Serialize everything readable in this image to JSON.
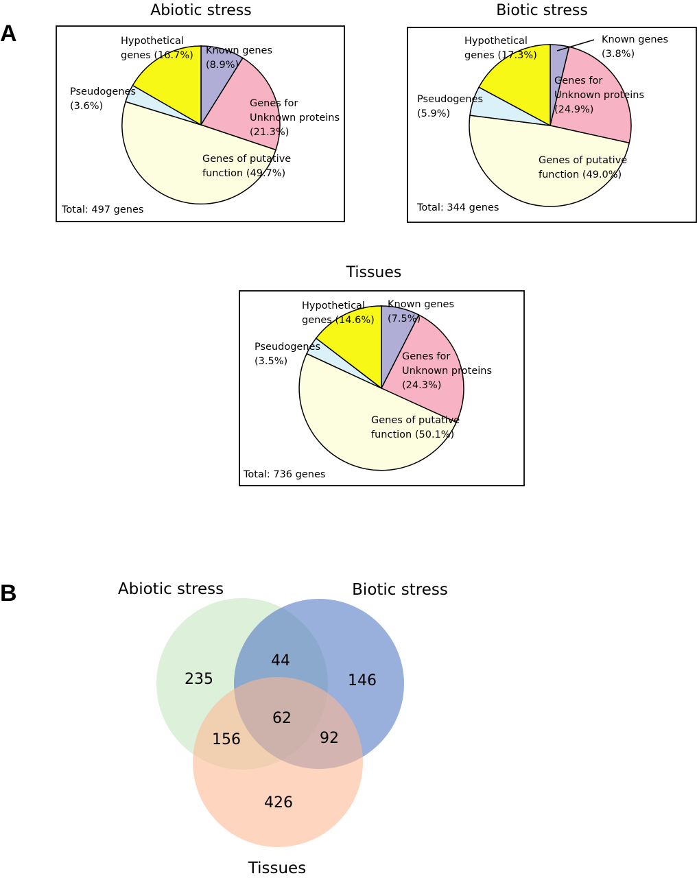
{
  "panels": {
    "a_label": "A",
    "b_label": "B"
  },
  "chart_data": [
    {
      "type": "pie",
      "title": "Abiotic stress",
      "total_label": "Total: 497 genes",
      "slices": [
        {
          "name": "Known genes",
          "value": 8.9,
          "label": [
            "Known genes",
            "(8.9%)"
          ],
          "color": "#b0aed6"
        },
        {
          "name": "Genes for Unknown proteins",
          "value": 21.3,
          "label": [
            "Genes for",
            "Unknown proteins",
            "(21.3%)"
          ],
          "color": "#f7b3c4"
        },
        {
          "name": "Genes of putative function",
          "value": 49.7,
          "label": [
            "Genes of putative",
            "function (49.7%)"
          ],
          "color": "#fdfde0"
        },
        {
          "name": "Pseudogenes",
          "value": 3.6,
          "label": [
            "Pseudogenes",
            "(3.6%)"
          ],
          "color": "#dbf1f9"
        },
        {
          "name": "Hypothetical genes",
          "value": 16.7,
          "label": [
            "Hypothetical",
            "genes (16.7%)"
          ],
          "color": "#f8f816"
        }
      ]
    },
    {
      "type": "pie",
      "title": "Biotic stress",
      "total_label": "Total: 344 genes",
      "slices": [
        {
          "name": "Known genes",
          "value": 3.8,
          "label": [
            "Known genes",
            "(3.8%)"
          ],
          "color": "#b0aed6"
        },
        {
          "name": "Genes for Unknown proteins",
          "value": 24.9,
          "label": [
            "Genes for",
            "Unknown proteins",
            "(24.9%)"
          ],
          "color": "#f7b3c4"
        },
        {
          "name": "Genes of putative function",
          "value": 49.0,
          "label": [
            "Genes of putative",
            "function (49.0%)"
          ],
          "color": "#fdfde0"
        },
        {
          "name": "Pseudogenes",
          "value": 5.9,
          "label": [
            "Pseudogenes",
            "(5.9%)"
          ],
          "color": "#dbf1f9"
        },
        {
          "name": "Hypothetical genes",
          "value": 17.3,
          "label": [
            "Hypothetical",
            "genes (17.3%)"
          ],
          "color": "#f8f816"
        }
      ]
    },
    {
      "type": "pie",
      "title": "Tissues",
      "total_label": "Total: 736 genes",
      "slices": [
        {
          "name": "Known genes",
          "value": 7.5,
          "label": [
            "Known genes",
            "(7.5%)"
          ],
          "color": "#b0aed6"
        },
        {
          "name": "Genes for Unknown proteins",
          "value": 24.3,
          "label": [
            "Genes for",
            "Unknown proteins",
            "(24.3%)"
          ],
          "color": "#f7b3c4"
        },
        {
          "name": "Genes of putative function",
          "value": 50.1,
          "label": [
            "Genes of putative",
            "function (50.1%)"
          ],
          "color": "#fdfde0"
        },
        {
          "name": "Pseudogenes",
          "value": 3.5,
          "label": [
            "Pseudogenes",
            "(3.5%)"
          ],
          "color": "#dbf1f9"
        },
        {
          "name": "Hypothetical genes",
          "value": 14.6,
          "label": [
            "Hypothetical",
            "genes (14.6%)"
          ],
          "color": "#f8f816"
        }
      ]
    },
    {
      "type": "venn",
      "sets": [
        {
          "name": "Abiotic stress",
          "color": "#c5e5bd"
        },
        {
          "name": "Biotic stress",
          "color": "#4f75c2"
        },
        {
          "name": "Tissues",
          "color": "#fdb892"
        }
      ],
      "regions": {
        "abiotic_only": 235,
        "biotic_only": 146,
        "tissues_only": 426,
        "abiotic_biotic": 44,
        "abiotic_tissues": 156,
        "biotic_tissues": 92,
        "all_three": 62
      }
    }
  ]
}
